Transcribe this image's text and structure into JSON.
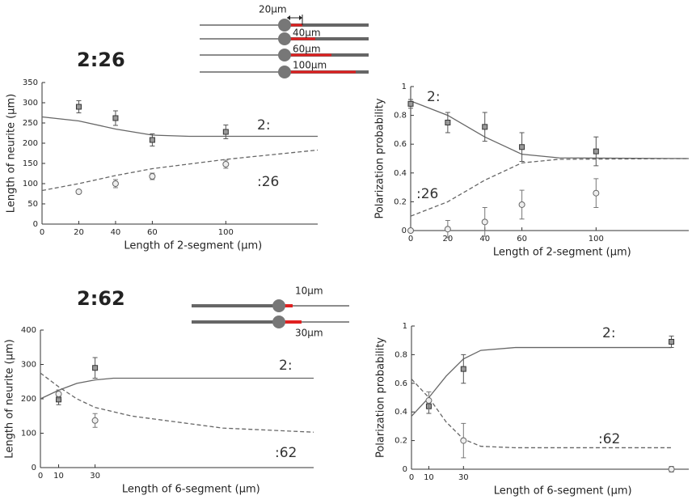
{
  "sections": [
    {
      "title": "2:26",
      "diagram_labels": [
        "20µm",
        "40µm",
        "60µm",
        "100µm"
      ]
    },
    {
      "title": "2:62",
      "diagram_labels": [
        "10µm",
        "30µm"
      ]
    }
  ],
  "chart_data": [
    {
      "type": "scatter",
      "xlabel": "Length of 2-segment (µm)",
      "ylabel": "Length of neurite (µm)",
      "xlim": [
        0,
        150
      ],
      "xticks": [
        0,
        20,
        40,
        60,
        100
      ],
      "ylim": [
        0,
        350
      ],
      "yticks": [
        0,
        50,
        100,
        150,
        200,
        250,
        300,
        350
      ],
      "series": [
        {
          "name": "2:",
          "marker": "square",
          "color": "#555555",
          "x": [
            20,
            40,
            60,
            100
          ],
          "values": [
            290,
            262,
            208,
            228
          ],
          "errors": [
            15,
            18,
            15,
            17
          ]
        },
        {
          "name": ":26",
          "marker": "circle",
          "color": "#777777",
          "x": [
            20,
            40,
            60,
            100
          ],
          "values": [
            80,
            100,
            118,
            148
          ],
          "errors": [
            4,
            10,
            8,
            10
          ]
        }
      ],
      "curves": [
        {
          "style": "solid",
          "color": "#666666",
          "x": [
            0,
            20,
            40,
            60,
            80,
            150
          ],
          "values": [
            265,
            255,
            235,
            220,
            217,
            217
          ]
        },
        {
          "style": "dashed",
          "color": "#666666",
          "x": [
            0,
            20,
            40,
            60,
            100,
            150
          ],
          "values": [
            83,
            100,
            120,
            137,
            160,
            183
          ]
        }
      ]
    },
    {
      "type": "scatter",
      "xlabel": "Length of 2-segment (µm)",
      "ylabel": "Polarization probability",
      "xlim": [
        0,
        150
      ],
      "xticks": [
        0,
        20,
        40,
        60,
        100
      ],
      "ylim": [
        0,
        1
      ],
      "yticks": [
        0,
        0.2,
        0.4,
        0.6,
        0.8,
        1
      ],
      "series": [
        {
          "name": "2:",
          "marker": "square",
          "color": "#555555",
          "x": [
            0,
            20,
            40,
            60,
            100
          ],
          "values": [
            0.88,
            0.75,
            0.72,
            0.58,
            0.55
          ],
          "errors": [
            0.03,
            0.07,
            0.1,
            0.1,
            0.1
          ]
        },
        {
          "name": ":26",
          "marker": "circle",
          "color": "#777777",
          "x": [
            0,
            20,
            40,
            60,
            100
          ],
          "values": [
            0,
            0.01,
            0.06,
            0.18,
            0.26
          ],
          "errors": [
            0,
            0.06,
            0.1,
            0.1,
            0.1
          ]
        }
      ],
      "curves": [
        {
          "style": "solid",
          "color": "#666666",
          "x": [
            0,
            20,
            40,
            60,
            80,
            150
          ],
          "values": [
            0.9,
            0.8,
            0.65,
            0.53,
            0.505,
            0.5
          ]
        },
        {
          "style": "dashed",
          "color": "#666666",
          "x": [
            0,
            20,
            40,
            60,
            80,
            150
          ],
          "values": [
            0.1,
            0.2,
            0.35,
            0.47,
            0.495,
            0.5
          ]
        }
      ]
    },
    {
      "type": "scatter",
      "xlabel": "Length of 6-segment (µm)",
      "ylabel": "Length of neurite (µm)",
      "xlim": [
        0,
        150
      ],
      "xticks": [
        0,
        10,
        30
      ],
      "ylim": [
        0,
        400
      ],
      "yticks": [
        0,
        100,
        200,
        300,
        400
      ],
      "series": [
        {
          "name": "2:",
          "marker": "square",
          "color": "#555555",
          "x": [
            10,
            30
          ],
          "values": [
            198,
            290
          ],
          "errors": [
            15,
            30
          ]
        },
        {
          "name": ":62",
          "marker": "circle",
          "color": "#777777",
          "x": [
            10,
            30
          ],
          "values": [
            214,
            137
          ],
          "errors": [
            12,
            20
          ]
        }
      ],
      "curves": [
        {
          "style": "solid",
          "color": "#666666",
          "x": [
            0,
            10,
            20,
            30,
            40,
            150
          ],
          "values": [
            200,
            225,
            245,
            255,
            260,
            260
          ]
        },
        {
          "style": "dashed",
          "color": "#666666",
          "x": [
            0,
            10,
            20,
            30,
            50,
            100,
            150
          ],
          "values": [
            275,
            235,
            200,
            175,
            150,
            115,
            103
          ]
        }
      ]
    },
    {
      "type": "scatter",
      "xlabel": "Length of 6-segment (µm)",
      "ylabel": "Polarization probability",
      "xlim": [
        0,
        160
      ],
      "xticks": [
        0,
        10,
        30
      ],
      "ylim": [
        0,
        1
      ],
      "yticks": [
        0,
        0.2,
        0.4,
        0.6,
        0.8,
        1
      ],
      "series": [
        {
          "name": "2:",
          "marker": "square",
          "color": "#555555",
          "x": [
            10,
            30,
            150
          ],
          "values": [
            0.44,
            0.7,
            0.89
          ],
          "errors": [
            0.05,
            0.1,
            0.04
          ]
        },
        {
          "name": ":62",
          "marker": "circle",
          "color": "#777777",
          "x": [
            10,
            30,
            150
          ],
          "values": [
            0.48,
            0.2,
            0
          ],
          "errors": [
            0.06,
            0.12,
            0.02
          ]
        }
      ],
      "curves": [
        {
          "style": "solid",
          "color": "#666666",
          "x": [
            0,
            10,
            20,
            30,
            40,
            60,
            150
          ],
          "values": [
            0.37,
            0.5,
            0.65,
            0.77,
            0.83,
            0.85,
            0.85
          ]
        },
        {
          "style": "dashed",
          "color": "#666666",
          "x": [
            0,
            10,
            20,
            30,
            40,
            60,
            150
          ],
          "values": [
            0.63,
            0.5,
            0.33,
            0.21,
            0.16,
            0.15,
            0.15
          ]
        }
      ]
    }
  ]
}
